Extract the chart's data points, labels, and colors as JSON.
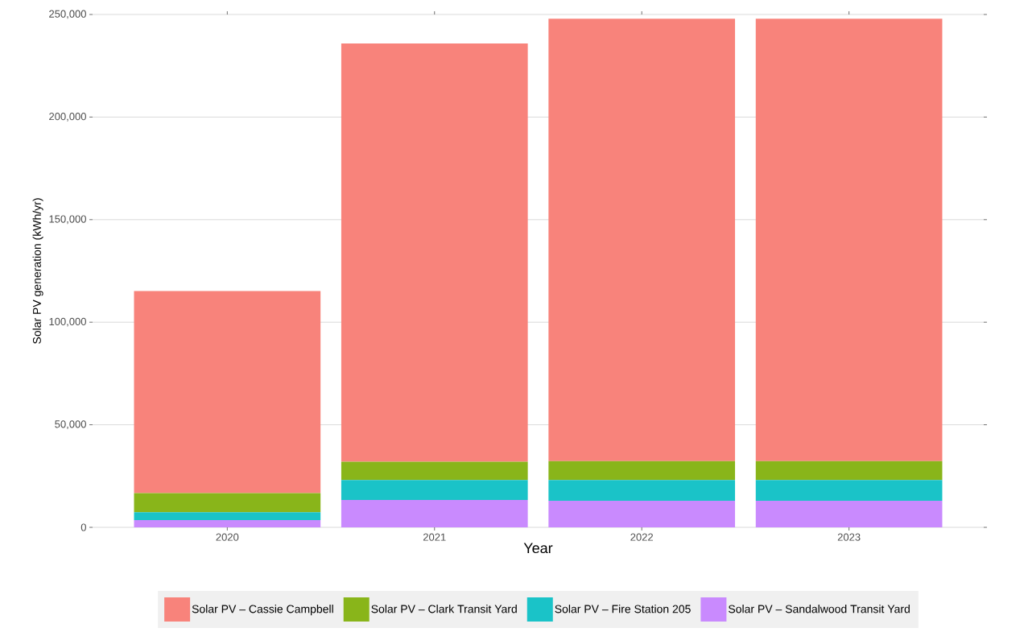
{
  "chart_data": {
    "type": "bar",
    "stacked": true,
    "xlabel": "Year",
    "ylabel": "Solar PV generation (kWh/yr)",
    "categories": [
      "2020",
      "2021",
      "2022",
      "2023"
    ],
    "series": [
      {
        "name": "Solar PV – Sandalwood Transit Yard",
        "color": "#c98afe",
        "values": [
          3500,
          13300,
          13000,
          13000
        ]
      },
      {
        "name": "Solar PV – Fire Station 205",
        "color": "#1ac3c8",
        "values": [
          3900,
          9800,
          10100,
          10100
        ]
      },
      {
        "name": "Solar PV – Clark Transit Yard",
        "color": "#89b51a",
        "values": [
          9300,
          8900,
          9200,
          9200
        ]
      },
      {
        "name": "Solar PV – Cassie Campbell",
        "color": "#f8837b",
        "values": [
          98500,
          203900,
          215600,
          215600
        ]
      }
    ],
    "ylim": [
      0,
      250000
    ],
    "yticks": [
      {
        "value": 0,
        "label": "0"
      },
      {
        "value": 50000,
        "label": "50,000"
      },
      {
        "value": 100000,
        "label": "100,000"
      },
      {
        "value": 150000,
        "label": "150,000"
      },
      {
        "value": 200000,
        "label": "200,000"
      },
      {
        "value": 250000,
        "label": "250,000"
      }
    ],
    "grid": "y",
    "legend": "bottom"
  }
}
